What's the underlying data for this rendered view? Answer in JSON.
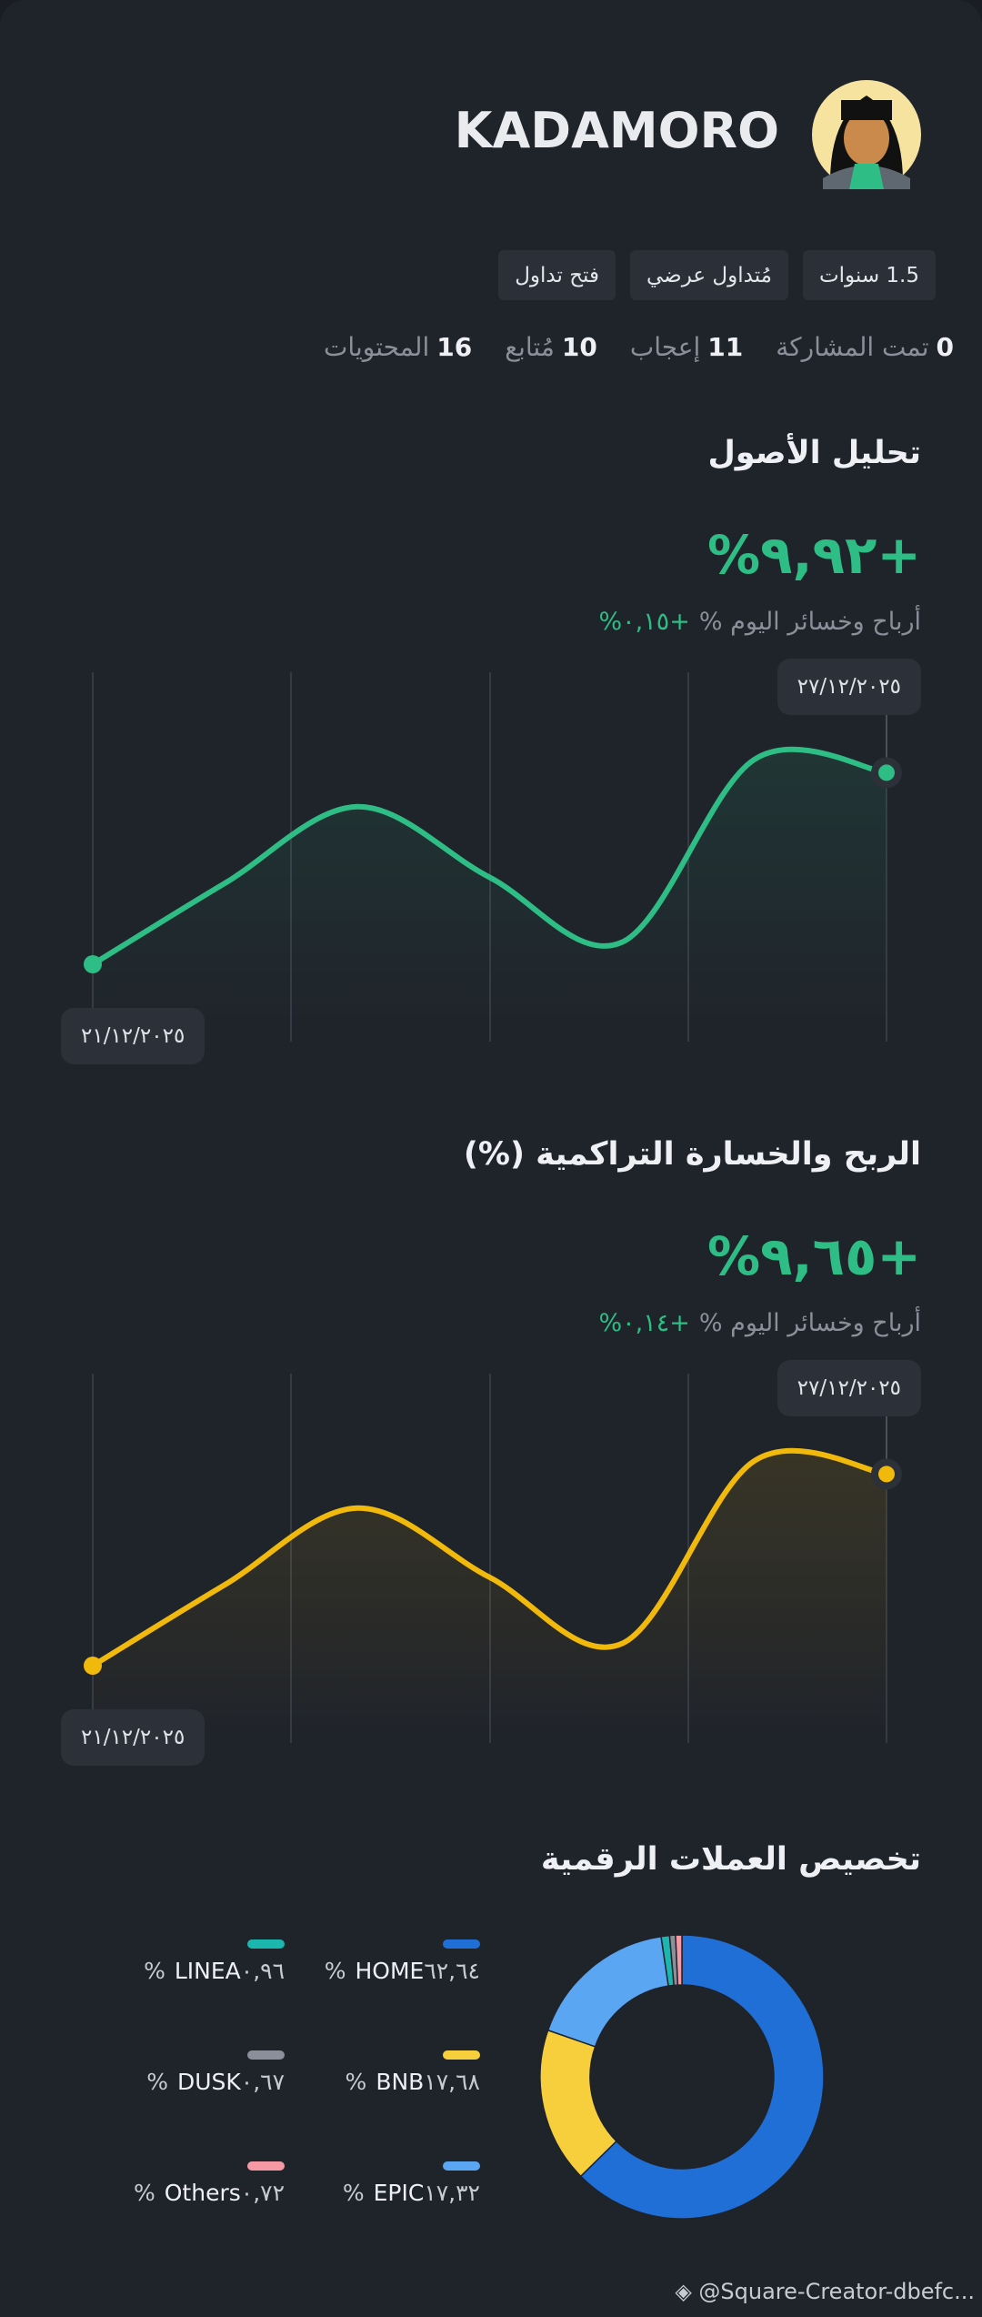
{
  "profile": {
    "name": "KADAMORO",
    "tags": [
      "1.5 سنوات",
      "مُتداول عرضي",
      "فتح تداول"
    ],
    "stats": [
      {
        "count": 0,
        "label": "تمت المشاركة"
      },
      {
        "count": 11,
        "label": "إعجاب"
      },
      {
        "count": 10,
        "label": "مُتابع"
      },
      {
        "count": 16,
        "label": "المحتويات"
      }
    ]
  },
  "chart_data": [
    {
      "type": "line",
      "title": "تحليل الأصول",
      "headline": "+٩,٩٢%",
      "today_label": "أرباح وخسائر اليوم %",
      "today_value": "+٠,١٥%",
      "categories": [
        "٢١/١٢/٢٠٢٥",
        null,
        null,
        null,
        null,
        null,
        "٢٧/١٢/٢٠٢٥"
      ],
      "values": [
        0,
        4.2,
        8.16,
        4.5,
        1.14,
        10.6,
        9.92
      ],
      "color": "#2ebd85"
    },
    {
      "type": "line",
      "title": "الربح والخسارة التراكمية (%)",
      "headline": "+٩,٦٥%",
      "today_label": "أرباح وخسائر اليوم %",
      "today_value": "+٠,١٤%",
      "categories": [
        "٢١/١٢/٢٠٢٥",
        null,
        null,
        null,
        null,
        null,
        "٢٧/١٢/٢٠٢٥"
      ],
      "values": [
        0,
        4.08,
        7.94,
        4.45,
        1.11,
        10.31,
        9.65
      ],
      "color": "#f0b90b"
    },
    {
      "type": "pie",
      "title": "تخصيص العملات الرقمية",
      "categories": [
        "HOME",
        "BNB",
        "EPIC",
        "LINEA",
        "DUSK",
        "Others"
      ],
      "values": [
        62.64,
        17.68,
        17.32,
        0.96,
        0.67,
        0.72
      ],
      "value_labels": [
        "٦٢,٦٤%",
        "١٧,٦٨%",
        "١٧,٣٢%",
        "٠,٩٦%",
        "٠,٦٧%",
        "٠,٧٢%"
      ],
      "colors": [
        "#1f6fd6",
        "#f7cf3c",
        "#5aa6f3",
        "#1bb6ad",
        "#8a8f99",
        "#f59aa5"
      ]
    }
  ],
  "watermark": "@Square-Creator-dbefc..."
}
